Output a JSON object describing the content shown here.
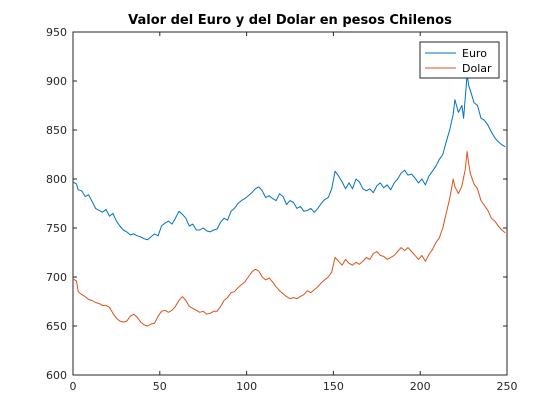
{
  "chart_data": {
    "type": "line",
    "title": "Valor del Euro y del Dolar en pesos Chilenos",
    "xlabel": "",
    "ylabel": "",
    "xlim": [
      0,
      250
    ],
    "ylim": [
      600,
      950
    ],
    "xticks": [
      0,
      50,
      100,
      150,
      200,
      250
    ],
    "yticks": [
      600,
      650,
      700,
      750,
      800,
      850,
      900,
      950
    ],
    "grid": false,
    "legend_position": "top-right",
    "series": [
      {
        "name": "Euro",
        "color": "#0072BD",
        "points": [
          [
            0,
            797
          ],
          [
            2,
            795
          ],
          [
            3,
            789
          ],
          [
            5,
            788
          ],
          [
            7,
            782
          ],
          [
            9,
            784
          ],
          [
            11,
            777
          ],
          [
            13,
            770
          ],
          [
            15,
            768
          ],
          [
            17,
            766
          ],
          [
            19,
            769
          ],
          [
            21,
            762
          ],
          [
            23,
            765
          ],
          [
            25,
            757
          ],
          [
            27,
            752
          ],
          [
            29,
            748
          ],
          [
            31,
            746
          ],
          [
            33,
            743
          ],
          [
            35,
            744
          ],
          [
            37,
            742
          ],
          [
            39,
            741
          ],
          [
            41,
            739
          ],
          [
            43,
            738
          ],
          [
            45,
            741
          ],
          [
            47,
            744
          ],
          [
            49,
            742
          ],
          [
            51,
            752
          ],
          [
            53,
            755
          ],
          [
            55,
            757
          ],
          [
            57,
            754
          ],
          [
            59,
            760
          ],
          [
            61,
            767
          ],
          [
            63,
            764
          ],
          [
            65,
            760
          ],
          [
            67,
            752
          ],
          [
            69,
            754
          ],
          [
            71,
            748
          ],
          [
            73,
            748
          ],
          [
            75,
            750
          ],
          [
            77,
            747
          ],
          [
            79,
            746
          ],
          [
            81,
            748
          ],
          [
            83,
            749
          ],
          [
            85,
            756
          ],
          [
            87,
            760
          ],
          [
            89,
            758
          ],
          [
            91,
            767
          ],
          [
            93,
            770
          ],
          [
            95,
            775
          ],
          [
            97,
            778
          ],
          [
            99,
            780
          ],
          [
            101,
            783
          ],
          [
            103,
            786
          ],
          [
            105,
            790
          ],
          [
            107,
            792
          ],
          [
            109,
            788
          ],
          [
            111,
            781
          ],
          [
            113,
            783
          ],
          [
            115,
            780
          ],
          [
            117,
            778
          ],
          [
            119,
            785
          ],
          [
            121,
            782
          ],
          [
            123,
            774
          ],
          [
            125,
            778
          ],
          [
            127,
            776
          ],
          [
            129,
            770
          ],
          [
            131,
            772
          ],
          [
            133,
            767
          ],
          [
            135,
            768
          ],
          [
            137,
            770
          ],
          [
            139,
            766
          ],
          [
            141,
            770
          ],
          [
            143,
            775
          ],
          [
            145,
            779
          ],
          [
            147,
            781
          ],
          [
            149,
            790
          ],
          [
            151,
            808
          ],
          [
            153,
            803
          ],
          [
            155,
            797
          ],
          [
            157,
            790
          ],
          [
            159,
            796
          ],
          [
            161,
            790
          ],
          [
            163,
            800
          ],
          [
            165,
            797
          ],
          [
            167,
            790
          ],
          [
            169,
            788
          ],
          [
            171,
            790
          ],
          [
            173,
            786
          ],
          [
            175,
            793
          ],
          [
            177,
            796
          ],
          [
            179,
            791
          ],
          [
            181,
            794
          ],
          [
            183,
            789
          ],
          [
            185,
            796
          ],
          [
            187,
            800
          ],
          [
            189,
            806
          ],
          [
            191,
            809
          ],
          [
            193,
            804
          ],
          [
            195,
            805
          ],
          [
            197,
            801
          ],
          [
            199,
            796
          ],
          [
            201,
            800
          ],
          [
            203,
            794
          ],
          [
            205,
            803
          ],
          [
            207,
            808
          ],
          [
            209,
            813
          ],
          [
            211,
            820
          ],
          [
            213,
            825
          ],
          [
            215,
            838
          ],
          [
            217,
            850
          ],
          [
            219,
            866
          ],
          [
            220,
            881
          ],
          [
            222,
            868
          ],
          [
            224,
            875
          ],
          [
            225,
            862
          ],
          [
            227,
            906
          ],
          [
            228,
            895
          ],
          [
            229,
            890
          ],
          [
            231,
            878
          ],
          [
            233,
            875
          ],
          [
            235,
            862
          ],
          [
            237,
            860
          ],
          [
            239,
            855
          ],
          [
            241,
            848
          ],
          [
            243,
            842
          ],
          [
            245,
            838
          ],
          [
            247,
            835
          ],
          [
            249,
            833
          ]
        ]
      },
      {
        "name": "Dolar",
        "color": "#D95319",
        "points": [
          [
            0,
            698
          ],
          [
            2,
            696
          ],
          [
            3,
            685
          ],
          [
            5,
            682
          ],
          [
            7,
            680
          ],
          [
            9,
            677
          ],
          [
            11,
            676
          ],
          [
            13,
            674
          ],
          [
            15,
            673
          ],
          [
            17,
            671
          ],
          [
            19,
            671
          ],
          [
            21,
            669
          ],
          [
            23,
            663
          ],
          [
            25,
            658
          ],
          [
            27,
            655
          ],
          [
            29,
            654
          ],
          [
            31,
            655
          ],
          [
            33,
            660
          ],
          [
            35,
            662
          ],
          [
            37,
            659
          ],
          [
            39,
            654
          ],
          [
            41,
            651
          ],
          [
            43,
            650
          ],
          [
            45,
            652
          ],
          [
            47,
            653
          ],
          [
            49,
            660
          ],
          [
            51,
            665
          ],
          [
            53,
            666
          ],
          [
            55,
            664
          ],
          [
            57,
            666
          ],
          [
            59,
            670
          ],
          [
            61,
            676
          ],
          [
            63,
            680
          ],
          [
            65,
            676
          ],
          [
            67,
            670
          ],
          [
            69,
            668
          ],
          [
            71,
            666
          ],
          [
            73,
            664
          ],
          [
            75,
            665
          ],
          [
            77,
            662
          ],
          [
            79,
            663
          ],
          [
            81,
            665
          ],
          [
            83,
            665
          ],
          [
            85,
            670
          ],
          [
            87,
            676
          ],
          [
            89,
            679
          ],
          [
            91,
            684
          ],
          [
            93,
            685
          ],
          [
            95,
            689
          ],
          [
            97,
            692
          ],
          [
            99,
            695
          ],
          [
            101,
            700
          ],
          [
            103,
            705
          ],
          [
            105,
            708
          ],
          [
            107,
            706
          ],
          [
            109,
            700
          ],
          [
            111,
            697
          ],
          [
            113,
            699
          ],
          [
            115,
            695
          ],
          [
            117,
            690
          ],
          [
            119,
            686
          ],
          [
            121,
            683
          ],
          [
            123,
            680
          ],
          [
            125,
            678
          ],
          [
            127,
            679
          ],
          [
            129,
            678
          ],
          [
            131,
            680
          ],
          [
            133,
            682
          ],
          [
            135,
            686
          ],
          [
            137,
            684
          ],
          [
            139,
            687
          ],
          [
            141,
            690
          ],
          [
            143,
            694
          ],
          [
            145,
            697
          ],
          [
            147,
            700
          ],
          [
            149,
            705
          ],
          [
            151,
            720
          ],
          [
            153,
            716
          ],
          [
            155,
            712
          ],
          [
            157,
            718
          ],
          [
            159,
            714
          ],
          [
            161,
            712
          ],
          [
            163,
            715
          ],
          [
            165,
            713
          ],
          [
            167,
            716
          ],
          [
            169,
            720
          ],
          [
            171,
            718
          ],
          [
            173,
            724
          ],
          [
            175,
            726
          ],
          [
            177,
            722
          ],
          [
            179,
            721
          ],
          [
            181,
            718
          ],
          [
            183,
            720
          ],
          [
            185,
            722
          ],
          [
            187,
            726
          ],
          [
            189,
            730
          ],
          [
            191,
            727
          ],
          [
            193,
            730
          ],
          [
            195,
            726
          ],
          [
            197,
            722
          ],
          [
            199,
            718
          ],
          [
            201,
            722
          ],
          [
            203,
            716
          ],
          [
            205,
            723
          ],
          [
            207,
            728
          ],
          [
            209,
            735
          ],
          [
            211,
            740
          ],
          [
            213,
            750
          ],
          [
            215,
            765
          ],
          [
            217,
            780
          ],
          [
            219,
            800
          ],
          [
            220,
            792
          ],
          [
            222,
            785
          ],
          [
            224,
            793
          ],
          [
            226,
            810
          ],
          [
            227,
            828
          ],
          [
            228,
            815
          ],
          [
            229,
            805
          ],
          [
            231,
            795
          ],
          [
            233,
            790
          ],
          [
            235,
            778
          ],
          [
            237,
            773
          ],
          [
            239,
            768
          ],
          [
            241,
            760
          ],
          [
            243,
            757
          ],
          [
            245,
            752
          ],
          [
            247,
            748
          ],
          [
            249,
            745
          ]
        ]
      }
    ]
  }
}
